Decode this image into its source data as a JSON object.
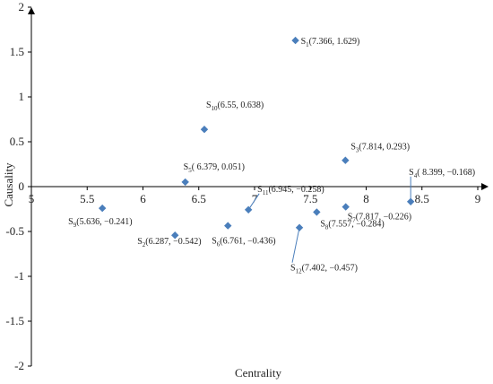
{
  "chart_data": {
    "type": "scatter",
    "title": "",
    "xlabel": "Centrality",
    "ylabel": "Causality",
    "xlim": [
      5,
      9
    ],
    "ylim": [
      -2,
      2
    ],
    "x_ticks": [
      "5",
      "5.5",
      "6",
      "6.5",
      "7",
      "7.5",
      "8",
      "8.5",
      "9"
    ],
    "y_ticks": [
      "2",
      "1.5",
      "1",
      "0.5",
      "0",
      "-0.5",
      "-1",
      "-1.5",
      "-2"
    ],
    "grid": false,
    "legend": "none",
    "marker": "diamond",
    "marker_color": "#4a7ebb",
    "points": [
      {
        "id": "S",
        "sub": "1",
        "x": 7.366,
        "y": 1.629,
        "coords": "(7.366, 1.629)"
      },
      {
        "id": "S",
        "sub": "2",
        "x": 6.287,
        "y": -0.542,
        "coords": "(6.287, −0.542)"
      },
      {
        "id": "S",
        "sub": "3",
        "x": 7.814,
        "y": 0.293,
        "coords": "(7.814, 0.293)"
      },
      {
        "id": "S",
        "sub": "4",
        "x": 8.399,
        "y": -0.168,
        "coords": "( 8.399, −0.168)"
      },
      {
        "id": "S",
        "sub": "5",
        "x": 6.379,
        "y": 0.051,
        "coords": "( 6.379, 0.051)"
      },
      {
        "id": "S",
        "sub": "6",
        "x": 6.761,
        "y": -0.436,
        "coords": "(6.761, −0.436)"
      },
      {
        "id": "S",
        "sub": "7",
        "x": 7.817,
        "y": -0.226,
        "coords": "(7.817, −0.226)"
      },
      {
        "id": "S",
        "sub": "8",
        "x": 7.557,
        "y": -0.284,
        "coords": "(7.557, −0.284)"
      },
      {
        "id": "S",
        "sub": "9",
        "x": 5.636,
        "y": -0.241,
        "coords": "(5.636, −0.241)"
      },
      {
        "id": "S",
        "sub": "10",
        "x": 6.55,
        "y": 0.638,
        "coords": "(6.55, 0.638)"
      },
      {
        "id": "S",
        "sub": "11",
        "x": 6.945,
        "y": -0.258,
        "coords": "(6.945, −0.258)"
      },
      {
        "id": "S",
        "sub": "12",
        "x": 7.402,
        "y": -0.457,
        "coords": "(7.402, −0.457)"
      }
    ]
  }
}
